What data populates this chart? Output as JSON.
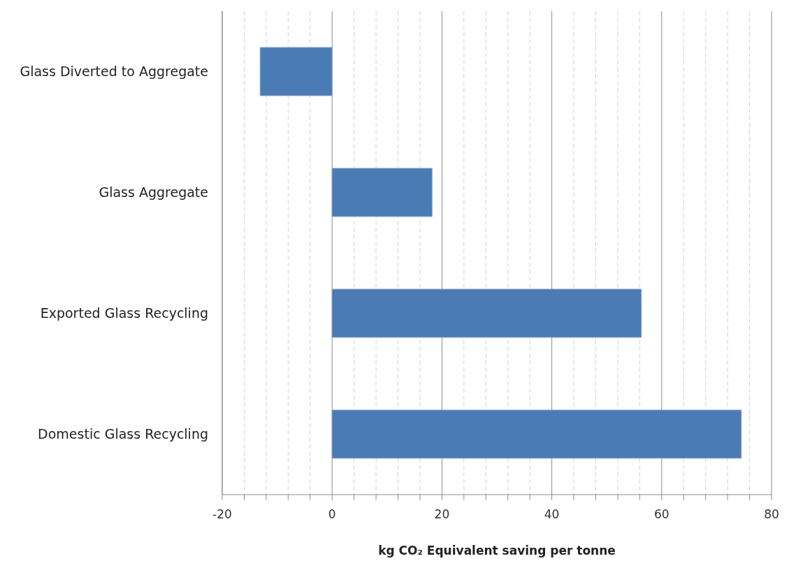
{
  "chart_data": {
    "type": "bar",
    "orientation": "horizontal",
    "xlabel": "kg CO₂ Equivalent saving per tonne",
    "categories": [
      "Glass Diverted  to Aggregate",
      "Glass Aggregate",
      "Exported Glass Recycling",
      "Domestic Glass Recycling"
    ],
    "values": [
      -13.1,
      18.2,
      56.3,
      74.5
    ],
    "color": "#4a7bb5",
    "xlim": [
      -20,
      80
    ],
    "xticks": [
      -20,
      {
        "value": -16,
        "label": null
      },
      {
        "value": -12,
        "label": null
      },
      {
        "value": -8,
        "label": null
      },
      {
        "value": -4,
        "label": null
      },
      0,
      {
        "value": 4,
        "label": null
      },
      {
        "value": 8,
        "label": null
      },
      {
        "value": 12,
        "label": null
      },
      {
        "value": 16,
        "label": null
      },
      20,
      {
        "value": 24,
        "label": null
      },
      {
        "value": 28,
        "label": null
      },
      {
        "value": 32,
        "label": null
      },
      {
        "value": 36,
        "label": null
      },
      40,
      {
        "value": 44,
        "label": null
      },
      {
        "value": 48,
        "label": null
      },
      {
        "value": 52,
        "label": null
      },
      {
        "value": 56,
        "label": null
      },
      60,
      {
        "value": 64,
        "label": null
      },
      {
        "value": 68,
        "label": null
      },
      {
        "value": 72,
        "label": null
      },
      {
        "value": 76,
        "label": null
      },
      80
    ],
    "grid": "x",
    "legend": false
  }
}
